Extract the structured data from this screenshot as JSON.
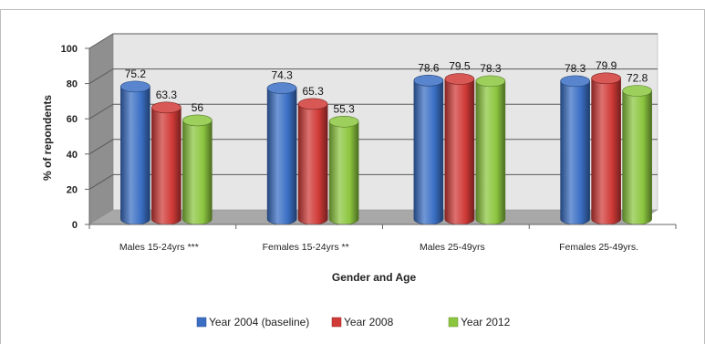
{
  "chart_data": {
    "type": "bar",
    "title": "",
    "xlabel": "Gender and Age",
    "ylabel": "% of repondents",
    "ylim": [
      0,
      100
    ],
    "yticks": [
      0,
      20,
      40,
      60,
      80,
      100
    ],
    "grid": true,
    "legend_position": "bottom",
    "categories": [
      "Males 15-24yrs ***",
      "Females 15-24yrs **",
      "Males 25-49yrs",
      "Females 25-49yrs."
    ],
    "series": [
      {
        "name": "Year 2004 (baseline)",
        "values": [
          75.2,
          74.3,
          78.6,
          78.3
        ],
        "labels": [
          "75.2",
          "74.3",
          "78.6",
          "78.3"
        ],
        "color": "#3a6fc4"
      },
      {
        "name": "Year 2008",
        "values": [
          63.3,
          65.3,
          79.5,
          79.9
        ],
        "labels": [
          "63.3",
          "65.3",
          "79.5",
          "79.9"
        ],
        "color": "#d03a37"
      },
      {
        "name": "Year 2012",
        "values": [
          56,
          55.3,
          78.3,
          72.8
        ],
        "labels": [
          "56",
          "55.3",
          "78.3",
          "72.8"
        ],
        "color": "#8cc63f"
      }
    ]
  }
}
